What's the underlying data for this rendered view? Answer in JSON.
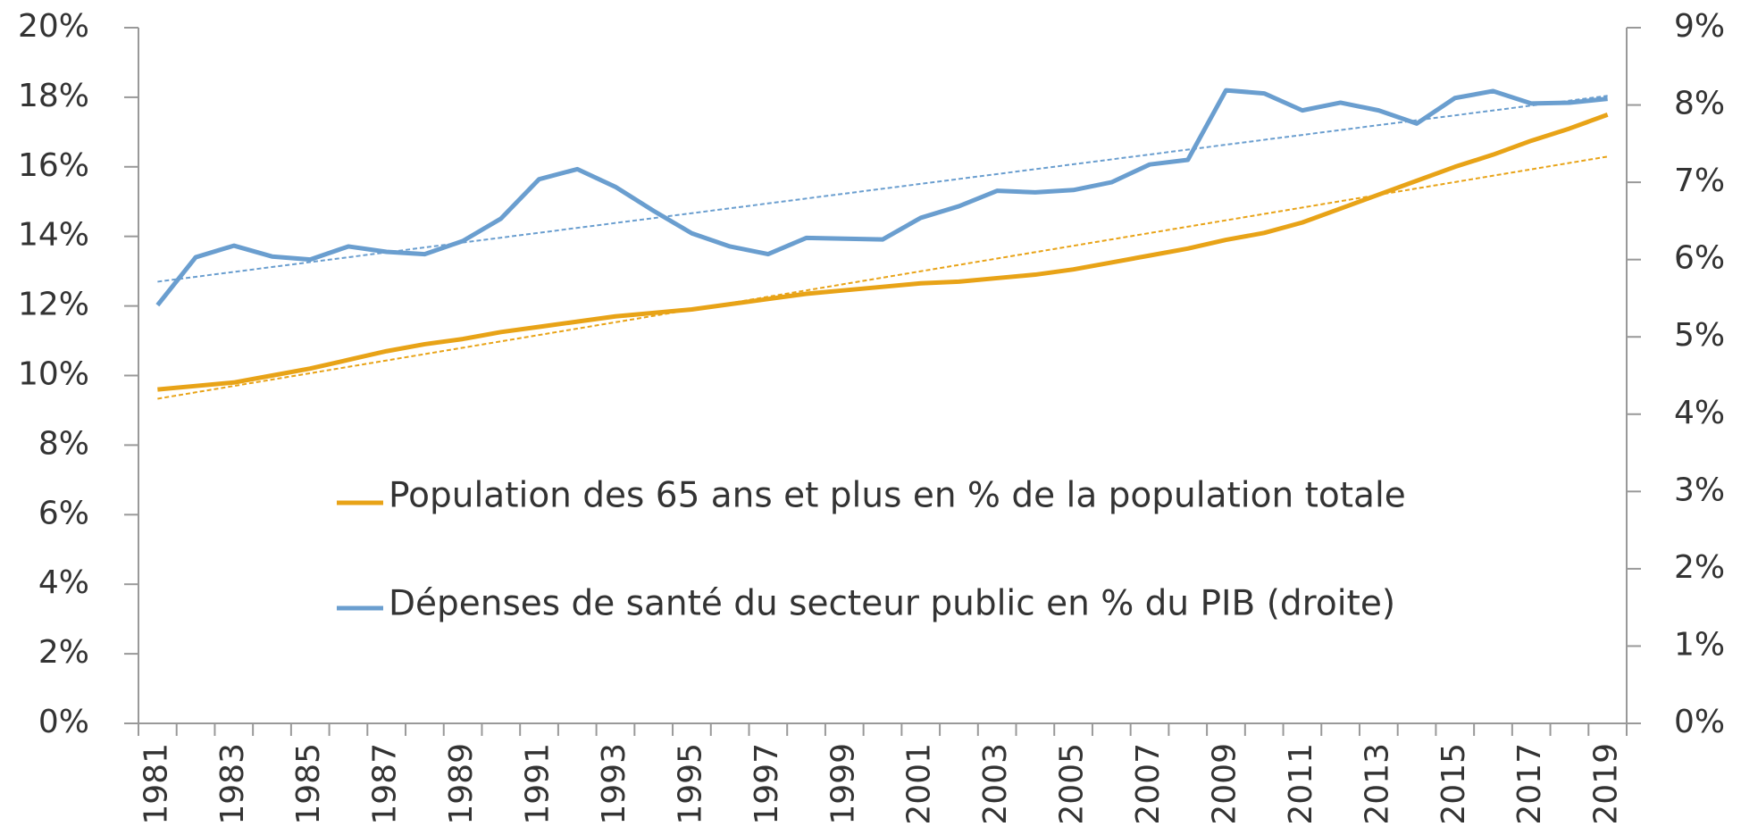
{
  "chart_data": {
    "type": "line",
    "categories": [
      "1981",
      null,
      "1983",
      null,
      "1985",
      null,
      "1987",
      null,
      "1989",
      null,
      "1991",
      null,
      "1993",
      null,
      "1995",
      null,
      "1997",
      null,
      "1999",
      null,
      "2001",
      null,
      "2003",
      null,
      "2005",
      null,
      "2007",
      null,
      "2009",
      null,
      "2011",
      null,
      "2013",
      null,
      "2015",
      null,
      "2017",
      null,
      "2019"
    ],
    "series": [
      {
        "name": "Population des 65 ans et plus en % de la population totale",
        "color": "#e8a317",
        "axis": "y",
        "values": [
          9.6,
          9.7,
          9.8,
          10.0,
          10.2,
          10.45,
          10.7,
          10.9,
          11.05,
          11.25,
          11.4,
          11.55,
          11.7,
          11.8,
          11.9,
          12.05,
          12.2,
          12.35,
          12.45,
          12.55,
          12.65,
          12.7,
          12.8,
          12.9,
          13.05,
          13.25,
          13.45,
          13.65,
          13.9,
          14.1,
          14.4,
          14.8,
          15.2,
          15.6,
          16.0,
          16.35,
          16.75,
          17.1,
          17.5
        ]
      },
      {
        "name": "Dépenses de santé du secteur public en % du PIB (droite)",
        "color": "#6a9ecf",
        "axis": "y2",
        "values": [
          5.41,
          6.03,
          6.18,
          6.04,
          6.0,
          6.17,
          6.1,
          6.07,
          6.24,
          6.53,
          7.04,
          7.17,
          6.94,
          6.63,
          6.34,
          6.17,
          6.07,
          6.28,
          6.27,
          6.26,
          6.54,
          6.69,
          6.89,
          6.87,
          6.9,
          7.0,
          7.23,
          7.29,
          8.19,
          8.15,
          7.93,
          8.03,
          7.93,
          7.76,
          8.09,
          8.18,
          8.02,
          8.03,
          8.08
        ]
      }
    ],
    "ylim": [
      0,
      20
    ],
    "yticks": [
      {
        "value": 0,
        "label": "0%"
      },
      {
        "value": 2,
        "label": "2%"
      },
      {
        "value": 4,
        "label": "4%"
      },
      {
        "value": 6,
        "label": "6%"
      },
      {
        "value": 8,
        "label": "8%"
      },
      {
        "value": 10,
        "label": "10%"
      },
      {
        "value": 12,
        "label": "12%"
      },
      {
        "value": 14,
        "label": "14%"
      },
      {
        "value": 16,
        "label": "16%"
      },
      {
        "value": 18,
        "label": "18%"
      },
      {
        "value": 20,
        "label": "20%"
      }
    ],
    "y2lim": [
      0,
      9
    ],
    "y2ticks": [
      {
        "value": 0,
        "label": "0%"
      },
      {
        "value": 1,
        "label": "1%"
      },
      {
        "value": 2,
        "label": "2%"
      },
      {
        "value": 3,
        "label": "3%"
      },
      {
        "value": 4,
        "label": "4%"
      },
      {
        "value": 5,
        "label": "5%"
      },
      {
        "value": 6,
        "label": "6%"
      },
      {
        "value": 7,
        "label": "7%"
      },
      {
        "value": 8,
        "label": "8%"
      },
      {
        "value": 9,
        "label": "9%"
      }
    ],
    "trendline": true,
    "grid": false
  }
}
